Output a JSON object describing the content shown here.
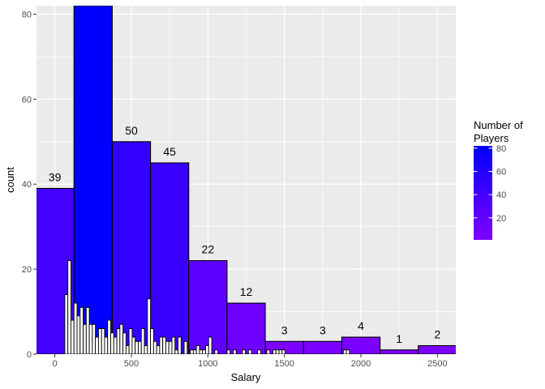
{
  "chart_data": {
    "type": "histogram",
    "xlabel": "Salary",
    "ylabel": "count",
    "xlim": [
      -120,
      2620
    ],
    "ylim": [
      0,
      82
    ],
    "x_ticks": [
      0,
      500,
      1000,
      1500,
      2000,
      2500
    ],
    "y_ticks": [
      0,
      20,
      40,
      60,
      80
    ],
    "grid": true,
    "legend": {
      "title_lines": [
        "Number of",
        "Players"
      ],
      "position": "right",
      "type": "colorbar",
      "range": [
        1,
        82
      ],
      "ticks": [
        20,
        40,
        60,
        80
      ],
      "color_low": "#7f00ff",
      "color_high": "#0000ff"
    },
    "coarse_bins": [
      {
        "x0": -125,
        "x1": 125,
        "count": 39,
        "label": "39"
      },
      {
        "x0": 125,
        "x1": 375,
        "count": 82,
        "label": ""
      },
      {
        "x0": 375,
        "x1": 625,
        "count": 50,
        "label": "50"
      },
      {
        "x0": 625,
        "x1": 875,
        "count": 45,
        "label": "45"
      },
      {
        "x0": 875,
        "x1": 1125,
        "count": 22,
        "label": "22"
      },
      {
        "x0": 1125,
        "x1": 1375,
        "count": 12,
        "label": "12"
      },
      {
        "x0": 1375,
        "x1": 1625,
        "count": 3,
        "label": "3"
      },
      {
        "x0": 1625,
        "x1": 1875,
        "count": 3,
        "label": "3"
      },
      {
        "x0": 1875,
        "x1": 2125,
        "count": 4,
        "label": "4"
      },
      {
        "x0": 2125,
        "x1": 2375,
        "count": 1,
        "label": "1"
      },
      {
        "x0": 2375,
        "x1": 2625,
        "count": 2,
        "label": "2"
      }
    ],
    "fine_bins": {
      "start": 65,
      "width": 20,
      "counts": [
        14,
        22,
        8,
        12,
        9,
        11,
        7,
        11,
        7,
        7,
        4,
        6,
        6,
        4,
        8,
        5,
        4,
        6,
        7,
        5,
        2,
        6,
        4,
        3,
        3,
        6,
        2,
        13,
        6,
        3,
        2,
        4,
        4,
        3,
        3,
        4,
        1,
        4,
        0,
        3,
        0,
        1,
        1,
        2,
        1,
        1,
        2,
        4,
        0,
        1,
        0,
        0,
        0,
        1,
        0,
        1,
        0,
        0,
        1,
        0,
        1,
        0,
        0,
        1,
        0,
        0,
        1,
        0,
        1,
        1,
        1,
        1,
        0,
        0,
        0,
        0,
        0,
        0,
        0,
        0,
        0,
        0,
        0,
        0,
        0,
        0,
        0,
        0,
        0,
        0,
        0,
        1,
        1
      ]
    }
  }
}
